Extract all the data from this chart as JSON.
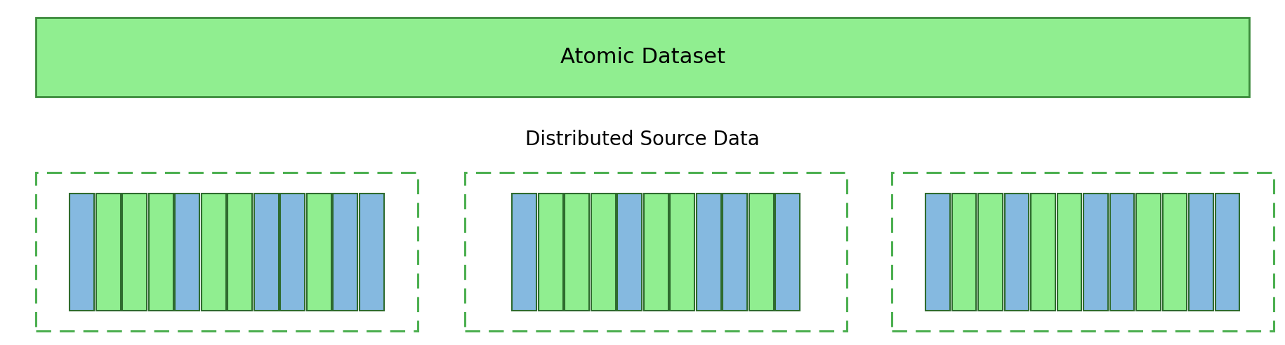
{
  "title_atomic": "Atomic Dataset",
  "title_distributed": "Distributed Source Data",
  "atomic_fill": "#90EE90",
  "atomic_edge": "#3A8A3A",
  "atomic_text_fontsize": 22,
  "atomic_text_bold": false,
  "distributed_label_fontsize": 20,
  "distributed_label_bold": false,
  "dashed_color": "#4CAF50",
  "blue_color": "#85B9E0",
  "green_color": "#90EE90",
  "bar_edge_color": "#2E6B2E",
  "background_color": "#FFFFFF",
  "bar_groups": [
    {
      "bars": [
        "blue",
        "green",
        "green",
        "green",
        "blue",
        "green",
        "green",
        "blue",
        "blue",
        "green",
        "blue",
        "blue"
      ]
    },
    {
      "bars": [
        "blue",
        "green",
        "green",
        "green",
        "blue",
        "green",
        "green",
        "blue",
        "blue",
        "green",
        "blue"
      ]
    },
    {
      "bars": [
        "blue",
        "green",
        "green",
        "blue",
        "green",
        "green",
        "blue",
        "blue",
        "green",
        "green",
        "blue",
        "blue"
      ]
    }
  ]
}
